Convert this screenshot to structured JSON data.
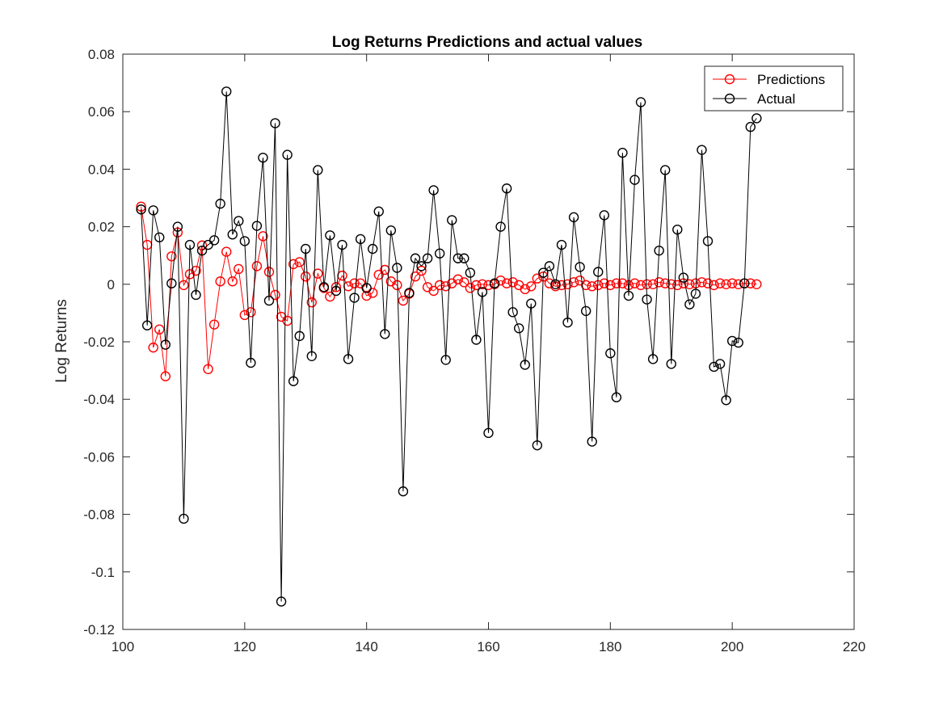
{
  "chart_data": {
    "type": "line",
    "title": "Log Returns Predictions and actual values",
    "xlabel": "",
    "ylabel": "Log Returns",
    "xlim": [
      100,
      220
    ],
    "ylim": [
      -0.12,
      0.08
    ],
    "xticks": [
      100,
      120,
      140,
      160,
      180,
      200,
      220
    ],
    "xtick_labels": [
      "100",
      "120",
      "140",
      "160",
      "180",
      "200",
      "220"
    ],
    "yticks": [
      -0.12,
      -0.1,
      -0.08,
      -0.06,
      -0.04,
      -0.02,
      0,
      0.02,
      0.04,
      0.06,
      0.08
    ],
    "ytick_labels": [
      "-0.12",
      "-0.1",
      "-0.08",
      "-0.06",
      "-0.04",
      "-0.02",
      "0",
      "0.02",
      "0.04",
      "0.06",
      "0.08"
    ],
    "grid": false,
    "legend_position": "top-right",
    "x": [
      103,
      104,
      105,
      106,
      107,
      108,
      109,
      110,
      111,
      112,
      113,
      114,
      115,
      116,
      117,
      118,
      119,
      120,
      121,
      122,
      123,
      124,
      125,
      126,
      127,
      128,
      129,
      130,
      131,
      132,
      133,
      134,
      135,
      136,
      137,
      138,
      139,
      140,
      141,
      142,
      143,
      144,
      145,
      146,
      147,
      148,
      149,
      150,
      151,
      152,
      153,
      154,
      155,
      156,
      157,
      158,
      159,
      160,
      161,
      162,
      163,
      164,
      165,
      166,
      167,
      168,
      169,
      170,
      171,
      172,
      173,
      174,
      175,
      176,
      177,
      178,
      179,
      180,
      181,
      182,
      183,
      184,
      185,
      186,
      187,
      188,
      189,
      190,
      191,
      192,
      193,
      194,
      195,
      196,
      197,
      198,
      199,
      200,
      201,
      202,
      203,
      204
    ],
    "series": [
      {
        "name": "Predictions",
        "color": "#ff0000",
        "marker": "circle",
        "values": [
          0.027,
          0.0137,
          -0.022,
          -0.0157,
          -0.032,
          0.0097,
          0.018,
          -0.0003,
          0.0035,
          0.0047,
          0.0135,
          -0.0295,
          -0.014,
          0.001,
          0.0113,
          0.001,
          0.0053,
          -0.0107,
          -0.0097,
          0.0063,
          0.0167,
          0.0043,
          -0.0037,
          -0.0113,
          -0.0127,
          0.007,
          0.0077,
          0.0027,
          -0.0063,
          0.0037,
          -0.0013,
          -0.0043,
          -0.001,
          0.003,
          -0.0007,
          0.0003,
          0.0003,
          -0.004,
          -0.003,
          0.0033,
          0.005,
          0.001,
          -0.0003,
          -0.0057,
          -0.0033,
          0.0027,
          0.0047,
          -0.001,
          -0.0023,
          -0.0003,
          -0.0007,
          0.0003,
          0.0017,
          0.0007,
          -0.0013,
          -0.0003,
          0.0,
          -0.0003,
          0.0,
          0.0013,
          0.0003,
          0.0007,
          -0.0003,
          -0.0017,
          -0.0007,
          0.002,
          0.0027,
          0.0003,
          -0.0007,
          -0.0003,
          0.0,
          0.0007,
          0.0013,
          -0.0003,
          -0.0007,
          -0.0003,
          0.0003,
          -0.0003,
          0.0003,
          0.0003,
          -0.0003,
          0.0003,
          -0.0003,
          0.0,
          0.0,
          0.0007,
          0.0003,
          0.0,
          -0.0003,
          0.0003,
          0.0,
          0.0003,
          0.0007,
          0.0003,
          -0.0003,
          0.0003,
          0.0,
          0.0003,
          0.0,
          0.0003,
          0.0003,
          0.0
        ]
      },
      {
        "name": "Actual",
        "color": "#000000",
        "marker": "circle",
        "values": [
          0.026,
          -0.0143,
          0.0257,
          0.0163,
          -0.021,
          0.0003,
          0.02,
          -0.0815,
          0.0137,
          -0.0037,
          0.0117,
          0.0137,
          0.0153,
          0.028,
          0.067,
          0.0173,
          0.022,
          0.015,
          -0.0273,
          0.0203,
          0.044,
          -0.0057,
          0.056,
          -0.1103,
          0.045,
          -0.0337,
          -0.018,
          0.0123,
          -0.025,
          0.0397,
          -0.001,
          0.017,
          -0.0023,
          0.0137,
          -0.026,
          -0.0047,
          0.0157,
          -0.0013,
          0.0123,
          0.0253,
          -0.0173,
          0.0187,
          0.0057,
          -0.072,
          -0.003,
          0.009,
          0.0063,
          0.009,
          0.0327,
          0.0107,
          -0.0263,
          0.0223,
          0.009,
          0.009,
          0.004,
          -0.0193,
          -0.0027,
          -0.0517,
          0.0003,
          0.02,
          0.0333,
          -0.0097,
          -0.0153,
          -0.028,
          -0.0067,
          -0.056,
          0.004,
          0.0063,
          0.0,
          0.0137,
          -0.0133,
          0.0233,
          0.006,
          -0.0093,
          -0.0547,
          0.0043,
          0.024,
          -0.024,
          -0.0393,
          0.0457,
          -0.004,
          0.0363,
          0.0633,
          -0.0053,
          -0.026,
          0.0117,
          0.0397,
          -0.0277,
          0.019,
          0.0023,
          -0.007,
          -0.0033,
          0.0467,
          0.015,
          -0.0287,
          -0.0277,
          -0.0403,
          -0.0197,
          -0.0203,
          0.0003,
          0.0547,
          0.0577
        ]
      }
    ]
  }
}
